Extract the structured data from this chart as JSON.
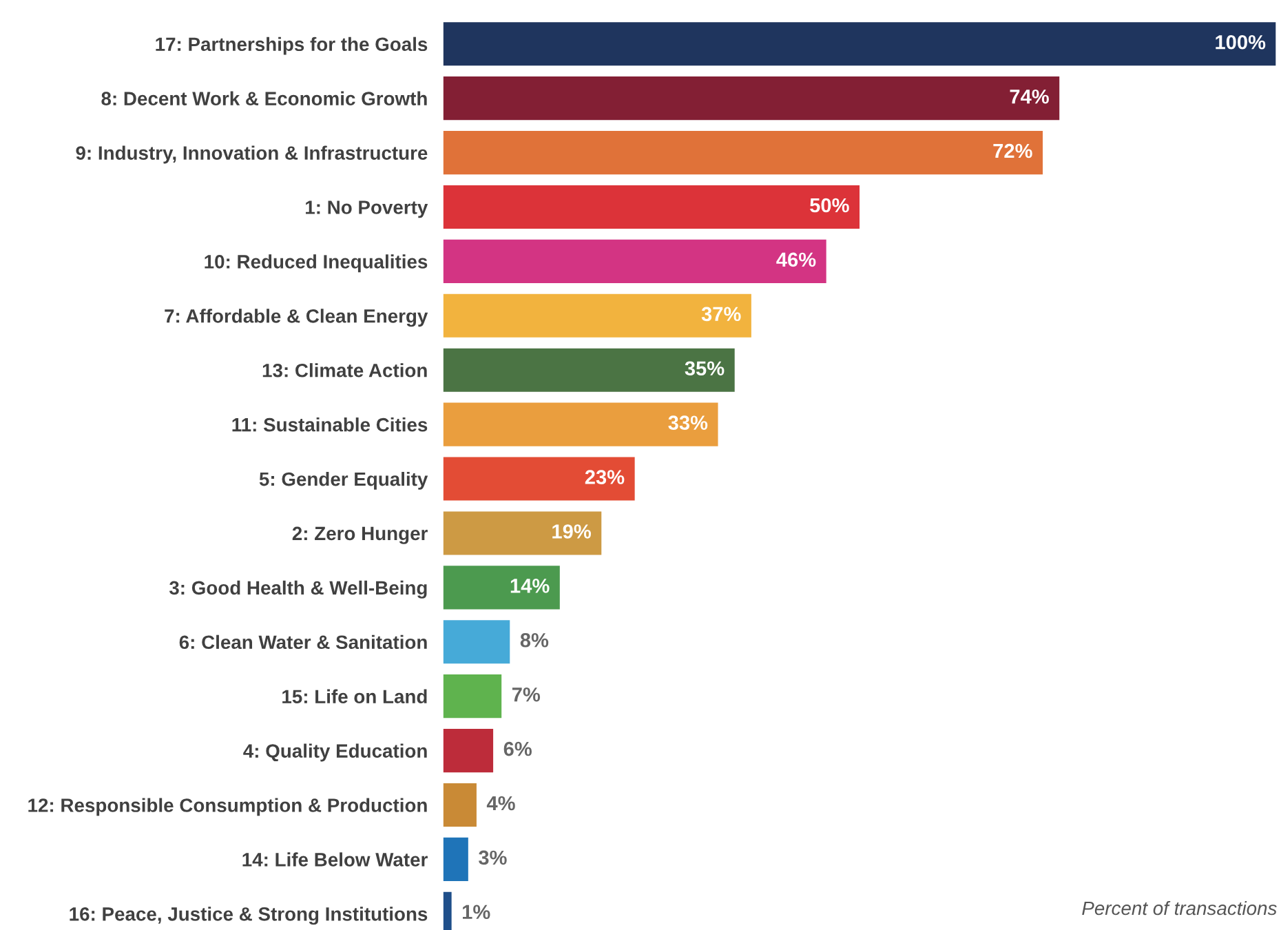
{
  "chart_data": {
    "type": "bar",
    "orientation": "horizontal",
    "categories": [
      "17: Partnerships for the Goals",
      "8: Decent Work & Economic Growth",
      "9: Industry, Innovation & Infrastructure",
      "1: No Poverty",
      "10: Reduced Inequalities",
      "7: Affordable & Clean Energy",
      "13: Climate Action",
      "11: Sustainable Cities",
      "5: Gender Equality",
      "2: Zero Hunger",
      "3: Good Health & Well-Being",
      "6: Clean Water & Sanitation",
      "15: Life on Land",
      "4: Quality Education",
      "12: Responsible Consumption & Production",
      "14: Life Below Water",
      "16: Peace, Justice & Strong Institutions"
    ],
    "values": [
      100,
      74,
      72,
      50,
      46,
      37,
      35,
      33,
      23,
      19,
      14,
      8,
      7,
      6,
      4,
      3,
      1
    ],
    "value_labels": [
      "100%",
      "74%",
      "72%",
      "50%",
      "46%",
      "37%",
      "35%",
      "33%",
      "23%",
      "19%",
      "14%",
      "8%",
      "7%",
      "6%",
      "4%",
      "3%",
      "1%"
    ],
    "colors": [
      "#1f355e",
      "#831f34",
      "#e07239",
      "#dc3339",
      "#d33483",
      "#f2b33e",
      "#4b7444",
      "#ea9e3e",
      "#e34c35",
      "#cd9a44",
      "#4c9a4f",
      "#46aad8",
      "#5fb34e",
      "#bd2c3a",
      "#c98a36",
      "#1f74b8",
      "#1f4f8a"
    ],
    "xlim": [
      0,
      100
    ],
    "tick_labels": "y",
    "grid": false,
    "legend": false,
    "annotations": [
      "Percent of transactions"
    ]
  }
}
